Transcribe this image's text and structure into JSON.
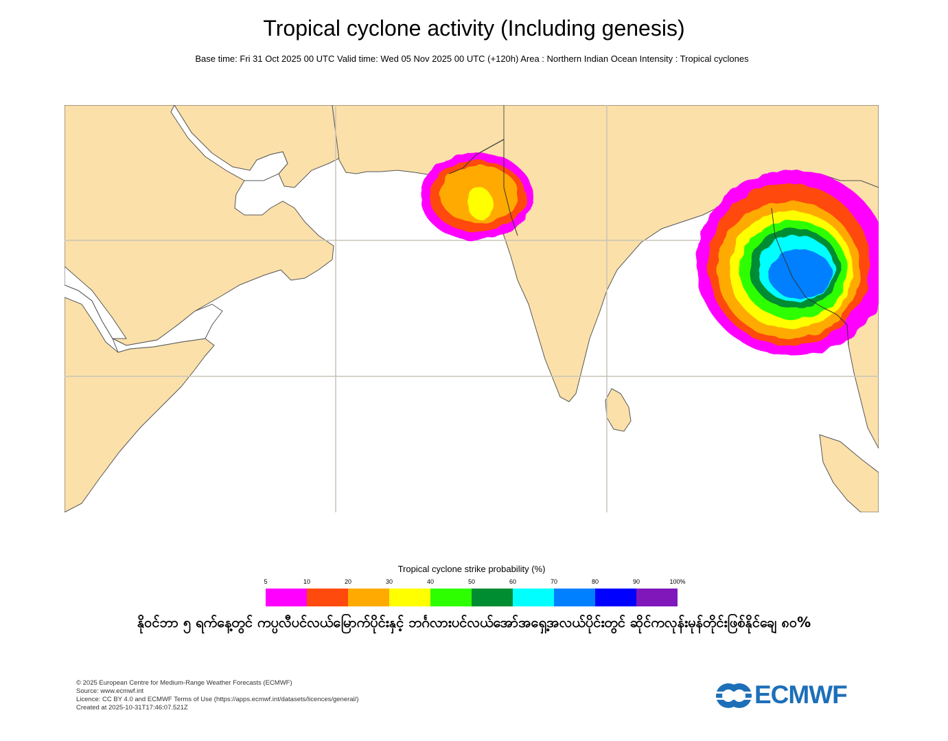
{
  "title": "Tropical cyclone activity (Including genesis)",
  "subtitle": "Base time: Fri 31 Oct 2025 00 UTC Valid time: Wed 05 Nov 2025 00 UTC (+120h) Area : Northern Indian Ocean Intensity : Tropical cyclones",
  "legend": {
    "title": "Tropical cyclone strike probability (%)",
    "ticks": [
      "5",
      "10",
      "20",
      "30",
      "40",
      "50",
      "60",
      "70",
      "80",
      "90",
      "100%"
    ],
    "colors": [
      "#ff00ff",
      "#ff4a0e",
      "#ffaa00",
      "#ffff00",
      "#2eff00",
      "#008c30",
      "#00ffff",
      "#0080ff",
      "#0000ff",
      "#7f17bb"
    ]
  },
  "caption": "နိုဝင်ဘာ ၅ ရက်နေ့တွင် ကပ္ပလီပင်လယ်မြောက်ပိုင်းနှင့် ဘင်္ဂလားပင်လယ်အော်အရှေ့အလယ်ပိုင်းတွင် ဆိုင်ကလုန်းမုန်တိုင်းဖြစ်နိုင်ချေ ၈၀%",
  "footer": {
    "line1": "© 2025 European Centre for Medium-Range Weather Forecasts (ECMWF)",
    "line2": "Source: www.ecmwf.int",
    "line3": "Licence: CC BY 4.0 and ECMWF Terms of Use (https://apps.ecmwf.int/datasets/licences/general/)",
    "line4": "Created at 2025-10-31T17:46:07.521Z"
  },
  "logo": {
    "text": "ECMWF",
    "color": "#1d6fb8"
  },
  "map_colors": {
    "land": "#fbe0aa",
    "sea": "#ffffff",
    "grid": "#c8c4b8",
    "coast": "#555555"
  }
}
